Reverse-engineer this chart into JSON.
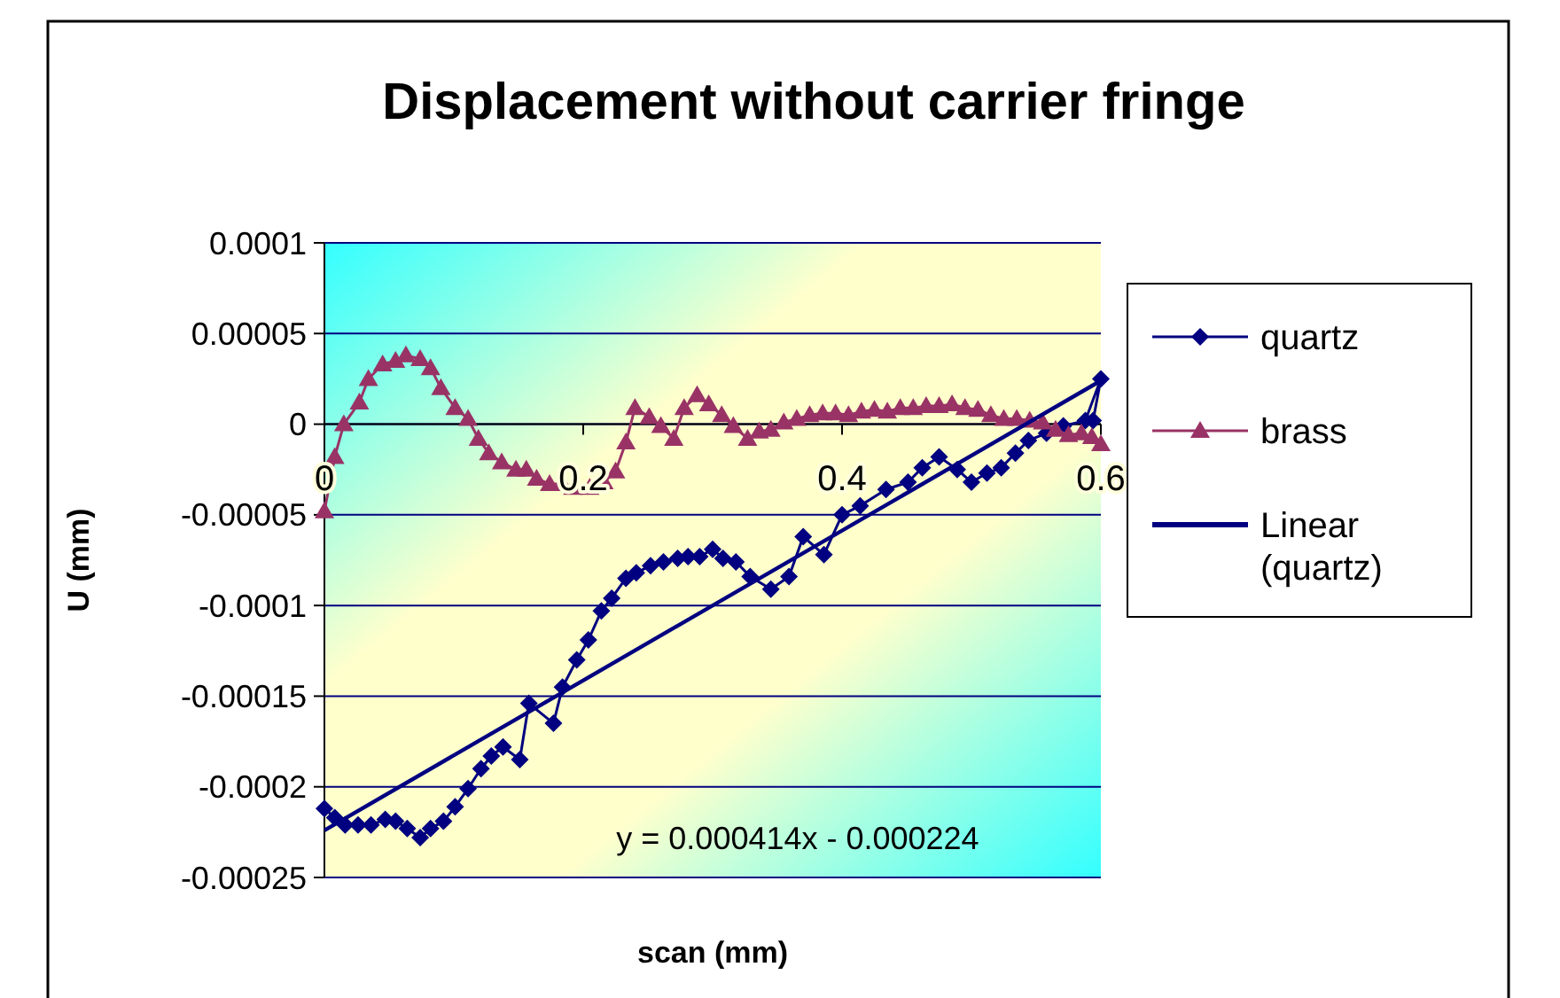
{
  "chart_data": {
    "type": "line",
    "title": "Displacement without carrier fringe",
    "xlabel": "scan (mm)",
    "ylabel": "U (mm)",
    "xlim": [
      0,
      0.6
    ],
    "xticks": [
      0,
      0.2,
      0.4,
      0.6
    ],
    "ylim": [
      -0.00025,
      0.0001
    ],
    "yticks": [
      -0.00025,
      -0.0002,
      -0.00015,
      -0.0001,
      {
        "value": -5e-05,
        "label": "-0.00005"
      },
      0,
      {
        "value": 5e-05,
        "label": "0.00005"
      },
      0.0001
    ],
    "grid": "y",
    "legend": "right",
    "annotations": [
      "y = 0.000414x - 0.000224"
    ],
    "series": [
      {
        "name": "quartz",
        "color": "#000080",
        "marker": "diamond",
        "x": [
          0,
          0.008,
          0.016,
          0.026,
          0.036,
          0.047,
          0.055,
          0.064,
          0.074,
          0.082,
          0.092,
          0.101,
          0.111,
          0.121,
          0.129,
          0.138,
          0.151,
          0.158,
          0.177,
          0.184,
          0.195,
          0.204,
          0.214,
          0.222,
          0.233,
          0.241,
          0.252,
          0.262,
          0.273,
          0.281,
          0.29,
          0.3,
          0.308,
          0.318,
          0.329,
          0.345,
          0.359,
          0.37,
          0.386,
          0.4,
          0.414,
          0.434,
          0.451,
          0.462,
          0.475,
          0.489,
          0.5,
          0.512,
          0.523,
          0.534,
          0.544,
          0.558,
          0.571,
          0.588,
          0.6,
          0.594
        ],
        "values": [
          -0.000212,
          -0.000217,
          -0.000221,
          -0.000221,
          -0.000221,
          -0.000218,
          -0.000219,
          -0.000223,
          -0.000228,
          -0.000223,
          -0.000219,
          -0.000211,
          -0.000201,
          -0.00019,
          -0.000183,
          -0.000178,
          -0.000185,
          -0.000154,
          -0.000165,
          -0.000145,
          -0.00013,
          -0.000119,
          -0.000103,
          -9.6e-05,
          -8.5e-05,
          -8.2e-05,
          -7.8e-05,
          -7.6e-05,
          -7.4e-05,
          -7.3e-05,
          -7.3e-05,
          -6.9e-05,
          -7.4e-05,
          -7.6e-05,
          -8.4e-05,
          -9.1e-05,
          -8.4e-05,
          -6.2e-05,
          -7.2e-05,
          -5e-05,
          -4.5e-05,
          -3.6e-05,
          -3.2e-05,
          -2.4e-05,
          -1.8e-05,
          -2.5e-05,
          -3.2e-05,
          -2.7e-05,
          -2.4e-05,
          -1.6e-05,
          -9e-06,
          -5e-06,
          -1e-06,
          2e-06,
          2.5e-05,
          2e-06
        ]
      },
      {
        "name": "brass",
        "color": "#993366",
        "marker": "triangle",
        "x": [
          0,
          0.008,
          0.015,
          0.027,
          0.034,
          0.045,
          0.055,
          0.063,
          0.074,
          0.082,
          0.09,
          0.101,
          0.111,
          0.119,
          0.127,
          0.137,
          0.148,
          0.156,
          0.164,
          0.174,
          0.184,
          0.192,
          0.205,
          0.216,
          0.225,
          0.233,
          0.24,
          0.251,
          0.26,
          0.27,
          0.278,
          0.288,
          0.297,
          0.307,
          0.316,
          0.327,
          0.336,
          0.345,
          0.355,
          0.365,
          0.375,
          0.385,
          0.395,
          0.405,
          0.415,
          0.425,
          0.435,
          0.445,
          0.455,
          0.465,
          0.475,
          0.485,
          0.495,
          0.505,
          0.515,
          0.525,
          0.535,
          0.545,
          0.555,
          0.565,
          0.575,
          0.585,
          0.593,
          0.6
        ],
        "values": [
          -4.8e-05,
          -1.8e-05,
          0,
          1.2e-05,
          2.5e-05,
          3.3e-05,
          3.5e-05,
          3.8e-05,
          3.6e-05,
          3.1e-05,
          2e-05,
          9e-06,
          3e-06,
          -8e-06,
          -1.6e-05,
          -2.1e-05,
          -2.5e-05,
          -2.5e-05,
          -3e-05,
          -3.3e-05,
          -3.3e-05,
          -3.5e-05,
          -3.5e-05,
          -3.2e-05,
          -2.6e-05,
          -1e-05,
          9e-06,
          4e-06,
          -1e-06,
          -8e-06,
          9e-06,
          1.6e-05,
          1.1e-05,
          5e-06,
          -1e-06,
          -8e-06,
          -4e-06,
          -3e-06,
          1e-06,
          3e-06,
          5e-06,
          6e-06,
          6e-06,
          5e-06,
          7e-06,
          8e-06,
          7e-06,
          9e-06,
          9e-06,
          1e-05,
          1e-05,
          1.1e-05,
          9e-06,
          8e-06,
          5e-06,
          3e-06,
          3e-06,
          2e-06,
          1e-06,
          -3e-06,
          -6e-06,
          -5e-06,
          -7e-06,
          -1.1e-05
        ]
      },
      {
        "name": "Linear\n(quartz)",
        "color": "#000080",
        "marker": "none",
        "x": [
          0,
          0.6
        ],
        "values": [
          -0.000224,
          2.4e-05
        ]
      }
    ]
  }
}
